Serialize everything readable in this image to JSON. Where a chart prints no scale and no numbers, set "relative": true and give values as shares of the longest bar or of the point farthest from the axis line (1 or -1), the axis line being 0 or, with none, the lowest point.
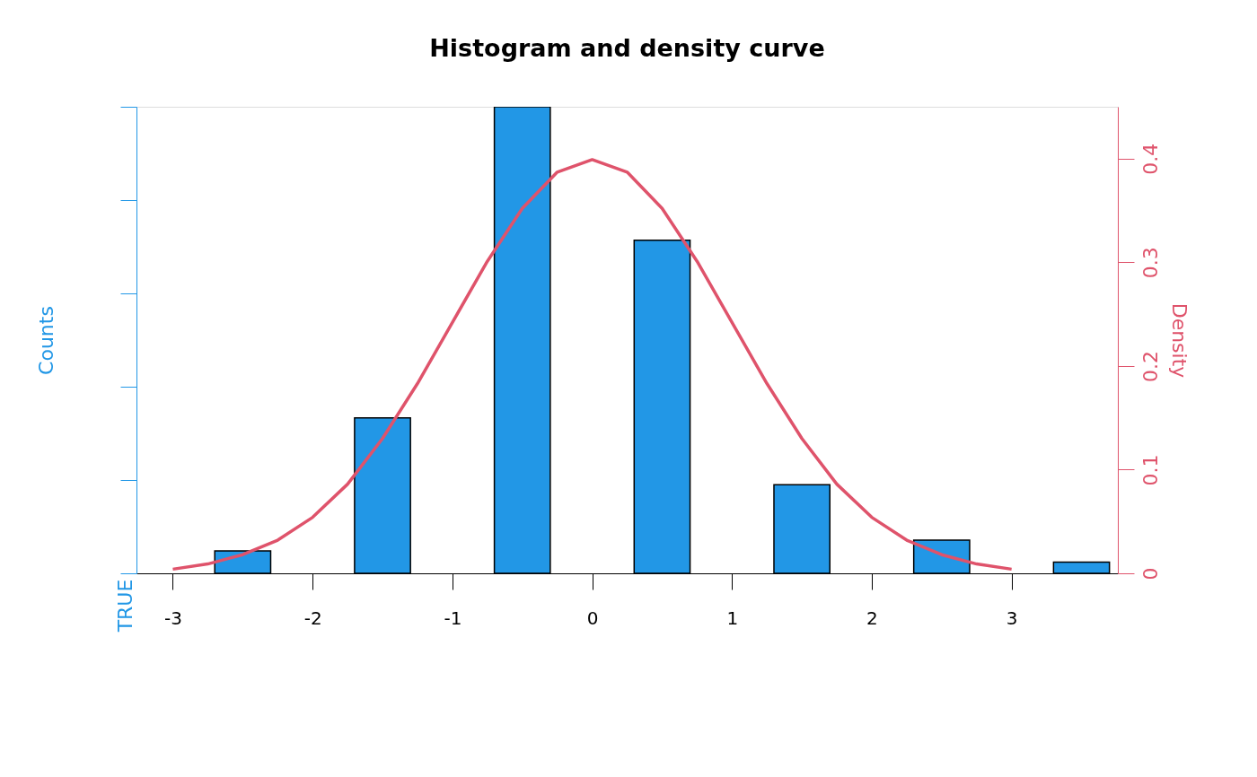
{
  "chart_data": {
    "type": "bar",
    "title": "Histogram and density curve",
    "ylabel": "Counts",
    "y2label": "Density",
    "relative": true,
    "annotations": [
      "TRUE"
    ],
    "xlim": [
      -3.26,
      3.76
    ],
    "xticks": [
      -3,
      -2,
      -1,
      0,
      1,
      2,
      3
    ],
    "y2lim": [
      0,
      0.45
    ],
    "y2ticks": [
      0,
      0.1,
      0.2,
      0.3,
      0.4
    ],
    "grid": false,
    "series": [
      {
        "color": "#2297e6",
        "x": [
          -2.5,
          -1.5,
          -0.5,
          0.5,
          1.5,
          2.5,
          3.5
        ],
        "values": [
          0.048,
          0.333,
          1,
          0.714,
          0.19,
          0.071,
          0.024
        ]
      },
      {
        "type": "line",
        "axis": "y2",
        "color": "#df536b",
        "x": [
          -3,
          -2.75,
          -2.5,
          -2.25,
          -2,
          -1.75,
          -1.5,
          -1.25,
          -1,
          -0.75,
          -0.5,
          -0.25,
          0,
          0.25,
          0.5,
          0.75,
          1,
          1.25,
          1.5,
          1.75,
          2,
          2.25,
          2.5,
          2.75,
          3
        ],
        "values": [
          0.004,
          0.009,
          0.018,
          0.032,
          0.054,
          0.086,
          0.13,
          0.183,
          0.242,
          0.301,
          0.352,
          0.387,
          0.399,
          0.387,
          0.352,
          0.301,
          0.242,
          0.183,
          0.13,
          0.086,
          0.054,
          0.032,
          0.018,
          0.009,
          0.004
        ]
      }
    ]
  }
}
